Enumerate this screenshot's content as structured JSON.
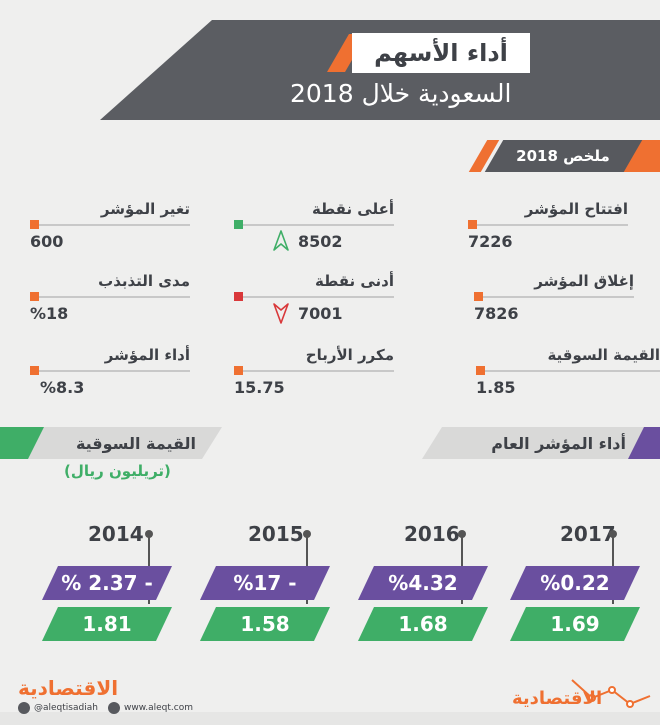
{
  "header": {
    "title_line1": "أداء الأسهم",
    "title_line2": "السعودية خلال 2018"
  },
  "summary": {
    "title": "ملخص 2018",
    "items": [
      {
        "label": "افتتاح المؤشر",
        "value": "7226"
      },
      {
        "label": "أعلى نقطة",
        "value": "8502"
      },
      {
        "label": "تغير المؤشر",
        "value": "600"
      },
      {
        "label": "إغلاق المؤشر",
        "value": "7826"
      },
      {
        "label": "أدنى نقطة",
        "value": "7001"
      },
      {
        "label": "مدى التذبذب",
        "value": "%18"
      },
      {
        "label": "القيمة السوقية",
        "value": "1.85"
      },
      {
        "label": "مكرر الأرباح",
        "value": "15.75"
      },
      {
        "label": "أداء المؤشر",
        "value": "%8.3"
      }
    ]
  },
  "sections": {
    "index_performance": "أداء المؤشر العام",
    "market_value": "القيمة السوقية",
    "market_value_unit": "(تريليون ريال)"
  },
  "years": [
    {
      "year": "2017",
      "performance": "%0.22",
      "market_value": "1.69"
    },
    {
      "year": "2016",
      "performance": "%4.32",
      "market_value": "1.68"
    },
    {
      "year": "2015",
      "performance": "%17 -",
      "market_value": "1.58"
    },
    {
      "year": "2014",
      "performance": "% 2.37 -",
      "market_value": "1.81"
    }
  ],
  "footer": {
    "brand": "الاقتصادية",
    "twitter": "@aleqtisadiah",
    "website": "www.aleqt.com",
    "logo_text": "الاقتصادية"
  },
  "colors": {
    "orange": "#ef7031",
    "purple": "#6a4f9f",
    "green": "#3fae67",
    "dark": "#57595e"
  }
}
